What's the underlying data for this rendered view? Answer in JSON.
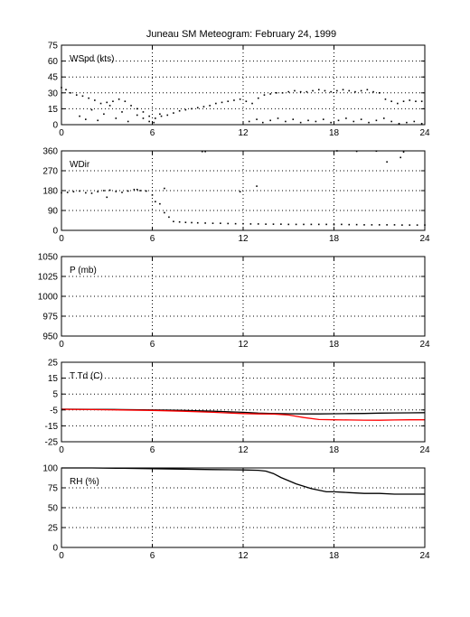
{
  "figure": {
    "title": "Juneau SM Meteogram:  February 24, 1999"
  },
  "chart_data": [
    {
      "type": "scatter",
      "label": "WSpd (kts)",
      "xlim": [
        0,
        24
      ],
      "xticks": [
        "0",
        "6",
        "12",
        "18",
        "24"
      ],
      "ylim": [
        0,
        75
      ],
      "yticks": [
        "0",
        "15",
        "30",
        "45",
        "60",
        "75"
      ],
      "grid": true,
      "series": [
        {
          "color": "#000000",
          "x": [
            0.0,
            0.3,
            0.6,
            1.0,
            1.4,
            1.8,
            2.2,
            2.6,
            3.0,
            3.4,
            3.8,
            4.2,
            4.6,
            5.0,
            5.4,
            5.8,
            6.2,
            6.6,
            7.0,
            7.4,
            7.8,
            8.2,
            8.6,
            9.0,
            9.4,
            9.8,
            10.2,
            10.6,
            11.0,
            11.4,
            11.8,
            12.2,
            12.6,
            13.0,
            13.4,
            13.8,
            14.2,
            14.6,
            15.0,
            15.4,
            15.8,
            16.2,
            16.6,
            17.0,
            17.4,
            17.8,
            18.2,
            18.6,
            19.0,
            19.4,
            19.8,
            20.2,
            20.6,
            21.0,
            21.4,
            21.8,
            22.2,
            22.6,
            23.0,
            23.4,
            23.8
          ],
          "y": [
            35,
            33,
            30,
            28,
            27,
            25,
            23,
            20,
            21,
            22,
            24,
            22,
            18,
            15,
            12,
            8,
            6,
            8,
            9,
            11,
            13,
            14,
            15,
            16,
            17,
            18,
            20,
            21,
            22,
            23,
            24,
            22,
            20,
            25,
            28,
            29,
            30,
            30,
            31,
            32,
            31,
            31,
            32,
            33,
            32,
            31,
            32,
            33,
            32,
            31,
            32,
            33,
            31,
            30,
            24,
            22,
            20,
            22,
            23,
            22,
            22
          ]
        },
        {
          "color": "#000000",
          "x": [
            1.2,
            1.6,
            2.0,
            2.4,
            2.8,
            3.2,
            3.6,
            4.0,
            4.4,
            5.0,
            5.4,
            5.8,
            6.1,
            6.5,
            12.4,
            12.9,
            13.3,
            13.8,
            14.3,
            14.8,
            15.3,
            15.8,
            16.3,
            16.8,
            17.3,
            17.8,
            18.3,
            18.8,
            19.3,
            19.8,
            20.3,
            20.8,
            21.3,
            21.8,
            22.3,
            22.8,
            23.3,
            23.8
          ],
          "y": [
            8,
            5,
            14,
            4,
            10,
            18,
            6,
            12,
            3,
            9,
            6,
            3,
            2,
            10,
            3,
            5,
            2,
            4,
            6,
            3,
            5,
            2,
            4,
            3,
            5,
            2,
            4,
            6,
            3,
            5,
            2,
            4,
            6,
            3,
            1,
            2,
            3,
            1
          ]
        }
      ]
    },
    {
      "type": "scatter",
      "label": "WDir",
      "xlim": [
        0,
        24
      ],
      "xticks": [
        "0",
        "6",
        "12",
        "18",
        "24"
      ],
      "ylim": [
        0,
        360
      ],
      "yticks": [
        "0",
        "90",
        "180",
        "270",
        "360"
      ],
      "grid": true,
      "series": [
        {
          "color": "#000000",
          "x": [
            0.0,
            0.4,
            0.8,
            1.2,
            1.6,
            2.0,
            2.4,
            2.8,
            3.2,
            3.6,
            4.0,
            4.4,
            4.8,
            5.2,
            5.6,
            6.0,
            6.2,
            6.5,
            6.8,
            7.1,
            7.4,
            7.8,
            8.2,
            8.6,
            9.0,
            9.5,
            10.0,
            10.5,
            11.0,
            11.5,
            12.0,
            12.5,
            13.0,
            13.5,
            14.0,
            14.5,
            15.0,
            15.5,
            16.0,
            16.5,
            17.0,
            17.5,
            18.0,
            18.5,
            19.0,
            19.5,
            20.0,
            20.5,
            21.0,
            21.5,
            22.0,
            22.5,
            23.0,
            23.5,
            24.0
          ],
          "y": [
            170,
            172,
            175,
            178,
            170,
            168,
            175,
            180,
            182,
            176,
            172,
            178,
            185,
            180,
            178,
            160,
            130,
            120,
            80,
            60,
            40,
            38,
            36,
            35,
            34,
            33,
            32,
            32,
            31,
            30,
            30,
            29,
            29,
            28,
            28,
            28,
            27,
            27,
            27,
            27,
            27,
            27,
            26,
            27,
            26,
            26,
            25,
            25,
            25,
            25,
            25,
            24,
            24,
            24,
            24
          ]
        },
        {
          "color": "#000000",
          "x": [
            3.0,
            5.0,
            6.8,
            9.3,
            9.5,
            11.8,
            12.9,
            18.2,
            19.5,
            20.8,
            21.5,
            22.4,
            22.6
          ],
          "y": [
            150,
            185,
            190,
            357,
            357,
            175,
            200,
            360,
            358,
            359,
            310,
            330,
            355
          ]
        }
      ]
    },
    {
      "type": "line",
      "label": "P (mb)",
      "xlim": [
        0,
        24
      ],
      "xticks": [
        "0",
        "6",
        "12",
        "18",
        "24"
      ],
      "ylim": [
        950,
        1050
      ],
      "yticks": [
        "950",
        "975",
        "1000",
        "1025",
        "1050"
      ],
      "grid": true,
      "series": []
    },
    {
      "type": "line",
      "label": "T Td (C)",
      "xlim": [
        0,
        24
      ],
      "xticks": [
        "0",
        "6",
        "12",
        "18",
        "24"
      ],
      "ylim": [
        -25,
        25
      ],
      "yticks": [
        "-25",
        "-15",
        "-5",
        "5",
        "15",
        "25"
      ],
      "grid": true,
      "series": [
        {
          "color": "#000000",
          "x": [
            0,
            2,
            4,
            6,
            8,
            10,
            12,
            13,
            14,
            15,
            16,
            17,
            18,
            19,
            20,
            21,
            22,
            23,
            24
          ],
          "y": [
            -4.5,
            -4.6,
            -4.8,
            -5.0,
            -5.3,
            -5.8,
            -6.5,
            -7.0,
            -7.3,
            -7.4,
            -7.5,
            -7.5,
            -7.4,
            -7.3,
            -7.2,
            -7.0,
            -6.9,
            -6.8,
            -6.7
          ]
        },
        {
          "color": "#ff0000",
          "x": [
            0,
            2,
            4,
            6,
            8,
            10,
            12,
            13,
            14,
            15,
            16,
            17,
            18,
            19,
            20,
            21,
            22,
            23,
            24
          ],
          "y": [
            -4.6,
            -4.8,
            -5.0,
            -5.3,
            -5.8,
            -6.5,
            -7.3,
            -7.5,
            -7.6,
            -8.2,
            -9.8,
            -11.0,
            -11.2,
            -11.3,
            -11.4,
            -11.5,
            -11.3,
            -11.2,
            -11.2
          ]
        }
      ]
    },
    {
      "type": "line",
      "label": "RH (%)",
      "xlim": [
        0,
        24
      ],
      "xticks": [
        "0",
        "6",
        "12",
        "18",
        "24"
      ],
      "ylim": [
        0,
        100
      ],
      "yticks": [
        "0",
        "25",
        "50",
        "75",
        "100"
      ],
      "grid": true,
      "series": [
        {
          "color": "#000000",
          "x": [
            0,
            2,
            4,
            6,
            8,
            10,
            12,
            13,
            13.5,
            14,
            14.5,
            15,
            15.5,
            16,
            16.5,
            17,
            17.5,
            18,
            19,
            20,
            21,
            22,
            23,
            24
          ],
          "y": [
            100,
            100,
            99.5,
            99,
            98.5,
            98,
            97.5,
            97,
            96,
            93,
            88,
            84,
            80,
            77,
            74,
            72,
            70,
            70,
            69,
            68,
            68,
            67,
            67,
            67
          ]
        }
      ]
    }
  ]
}
